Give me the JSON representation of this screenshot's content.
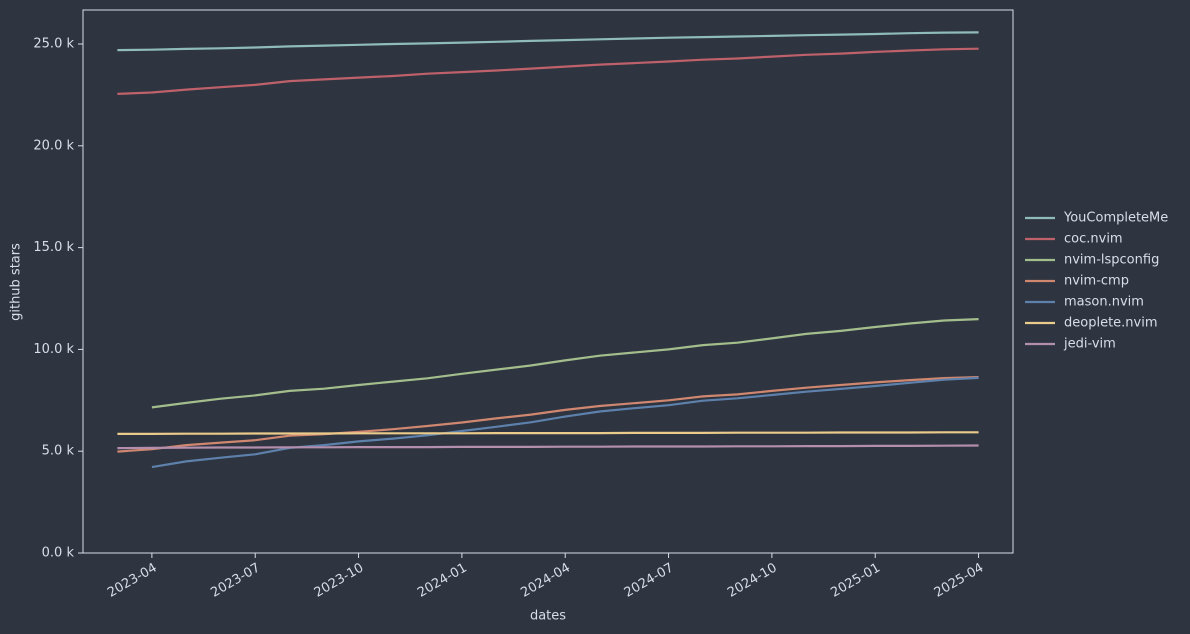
{
  "chart_data": {
    "type": "line",
    "xlabel": "dates",
    "ylabel": "github stars",
    "x": [
      "2023-03",
      "2023-04",
      "2023-05",
      "2023-06",
      "2023-07",
      "2023-08",
      "2023-09",
      "2023-10",
      "2023-11",
      "2023-12",
      "2024-01",
      "2024-02",
      "2024-03",
      "2024-04",
      "2024-05",
      "2024-06",
      "2024-07",
      "2024-08",
      "2024-09",
      "2024-10",
      "2024-11",
      "2024-12",
      "2025-01",
      "2025-02",
      "2025-03",
      "2025-04"
    ],
    "series": [
      {
        "name": "YouCompleteMe",
        "color": "#8fbcbb",
        "values": [
          24700,
          24720,
          24760,
          24790,
          24830,
          24880,
          24920,
          24960,
          25000,
          25030,
          25070,
          25110,
          25150,
          25190,
          25230,
          25270,
          25310,
          25340,
          25370,
          25400,
          25430,
          25460,
          25490,
          25530,
          25560,
          25570
        ]
      },
      {
        "name": "coc.nvim",
        "color": "#bf616a",
        "values": [
          22550,
          22620,
          22760,
          22880,
          22990,
          23180,
          23260,
          23350,
          23430,
          23540,
          23620,
          23700,
          23790,
          23890,
          23990,
          24060,
          24140,
          24230,
          24290,
          24380,
          24470,
          24530,
          24610,
          24680,
          24740,
          24770
        ]
      },
      {
        "name": "nvim-lspconfig",
        "color": "#a3be8c",
        "values": [
          null,
          7150,
          7370,
          7580,
          7740,
          7960,
          8070,
          8250,
          8420,
          8580,
          8800,
          9010,
          9210,
          9460,
          9690,
          9850,
          10000,
          10210,
          10330,
          10540,
          10760,
          10910,
          11100,
          11270,
          11420,
          11490
        ]
      },
      {
        "name": "nvim-cmp",
        "color": "#d08770",
        "values": [
          4980,
          5100,
          5300,
          5420,
          5540,
          5760,
          5840,
          5950,
          6080,
          6240,
          6410,
          6610,
          6800,
          7030,
          7220,
          7360,
          7500,
          7690,
          7790,
          7960,
          8120,
          8250,
          8380,
          8490,
          8590,
          8640
        ]
      },
      {
        "name": "mason.nvim",
        "color": "#5e81ac",
        "values": [
          null,
          4220,
          4500,
          4680,
          4850,
          5160,
          5300,
          5480,
          5620,
          5780,
          5990,
          6200,
          6420,
          6700,
          6950,
          7110,
          7260,
          7480,
          7600,
          7760,
          7920,
          8060,
          8200,
          8360,
          8510,
          8600
        ]
      },
      {
        "name": "deoplete.nvim",
        "color": "#ebcb8b",
        "values": [
          5850,
          5850,
          5860,
          5860,
          5870,
          5870,
          5870,
          5880,
          5880,
          5880,
          5880,
          5890,
          5890,
          5890,
          5890,
          5900,
          5900,
          5900,
          5910,
          5910,
          5910,
          5920,
          5920,
          5920,
          5930,
          5930
        ]
      },
      {
        "name": "jedi-vim",
        "color": "#b48ead",
        "values": [
          5150,
          5160,
          5170,
          5180,
          5180,
          5190,
          5190,
          5200,
          5200,
          5200,
          5210,
          5210,
          5210,
          5220,
          5220,
          5230,
          5230,
          5230,
          5240,
          5240,
          5250,
          5250,
          5260,
          5260,
          5270,
          5280
        ]
      }
    ],
    "xlim": [
      "2023-02",
      "2025-05"
    ],
    "xticks": [
      "2023-04",
      "2023-07",
      "2023-10",
      "2024-01",
      "2024-04",
      "2024-07",
      "2024-10",
      "2025-01",
      "2025-04"
    ],
    "ylim": [
      0,
      26670
    ],
    "yticks": [
      {
        "value": 0,
        "label": "0.0 k"
      },
      {
        "value": 5000,
        "label": "5.0 k"
      },
      {
        "value": 10000,
        "label": "10.0 k"
      },
      {
        "value": 15000,
        "label": "15.0 k"
      },
      {
        "value": 20000,
        "label": "20.0 k"
      },
      {
        "value": 25000,
        "label": "25.0 k"
      }
    ],
    "grid": false,
    "legend": "right"
  }
}
